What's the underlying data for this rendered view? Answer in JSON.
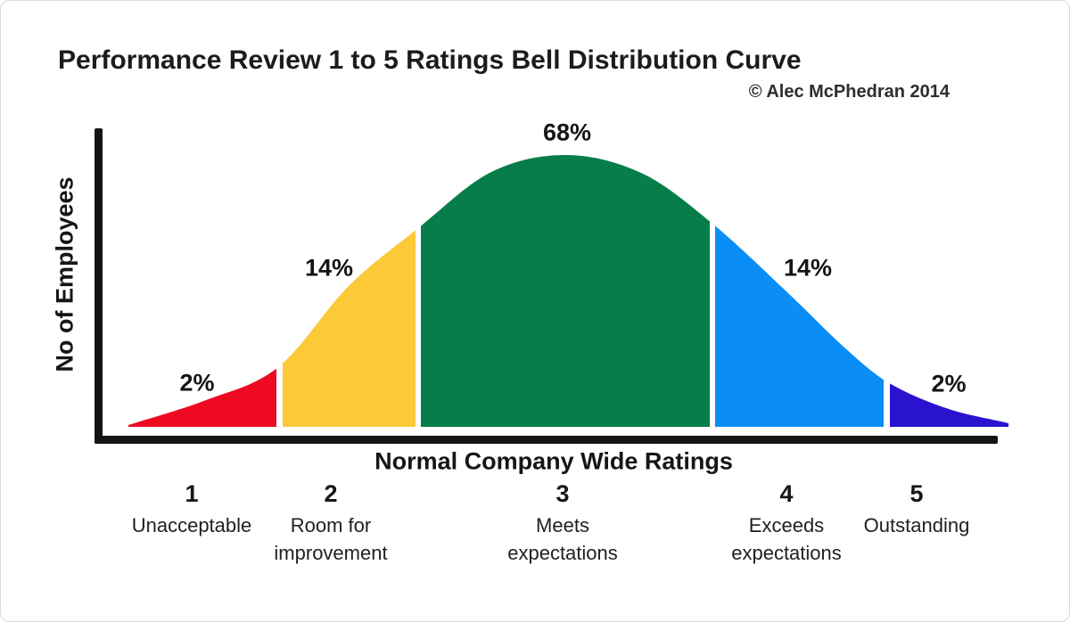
{
  "title": "Performance Review 1 to 5 Ratings Bell Distribution Curve",
  "copyright": "© Alec McPhedran 2014",
  "chart_data": {
    "type": "area",
    "subtype": "bell-distribution-curve",
    "title": "Performance Review 1 to 5 Ratings Bell Distribution Curve",
    "xlabel": "Normal Company Wide Ratings",
    "ylabel": "No of Employees",
    "grid": false,
    "legend": false,
    "unit": "%",
    "categories": [
      "1",
      "2",
      "3",
      "4",
      "5"
    ],
    "values": [
      2,
      14,
      68,
      14,
      2
    ],
    "axis_color": "#141414",
    "segments": [
      {
        "rating": "1",
        "name": "Unacceptable",
        "name_line1": "Unacceptable",
        "name_line2": "",
        "percent": 2,
        "percent_label": "2%",
        "color": "#ee0a21"
      },
      {
        "rating": "2",
        "name": "Room for improvement",
        "name_line1": "Room for",
        "name_line2": "improvement",
        "percent": 14,
        "percent_label": "14%",
        "color": "#fcc938"
      },
      {
        "rating": "3",
        "name": "Meets expectations",
        "name_line1": "Meets",
        "name_line2": "expectations",
        "percent": 68,
        "percent_label": "68%",
        "color": "#077d49"
      },
      {
        "rating": "4",
        "name": "Exceeds expectations",
        "name_line1": "Exceeds",
        "name_line2": "expectations",
        "percent": 14,
        "percent_label": "14%",
        "color": "#0a8ef6"
      },
      {
        "rating": "5",
        "name": "Outstanding",
        "name_line1": "Outstanding",
        "name_line2": "",
        "percent": 2,
        "percent_label": "2%",
        "color": "#2a13cf"
      }
    ]
  }
}
